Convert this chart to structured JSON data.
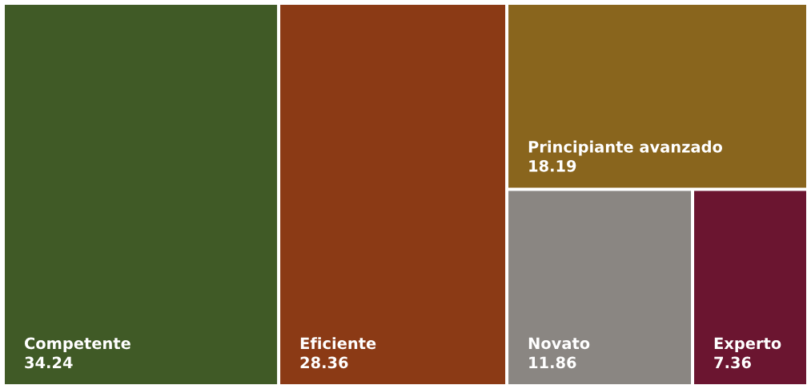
{
  "chart_data": {
    "type": "other",
    "categories": [
      "Competente",
      "Eficiente",
      "Principiante avanzado",
      "Novato",
      "Experto"
    ],
    "values": [
      34.24,
      28.36,
      18.19,
      11.86,
      7.36
    ],
    "colors": [
      "#405a26",
      "#8b3a15",
      "#89651d",
      "#8a8682",
      "#6b1530"
    ],
    "data_labels": true
  }
}
